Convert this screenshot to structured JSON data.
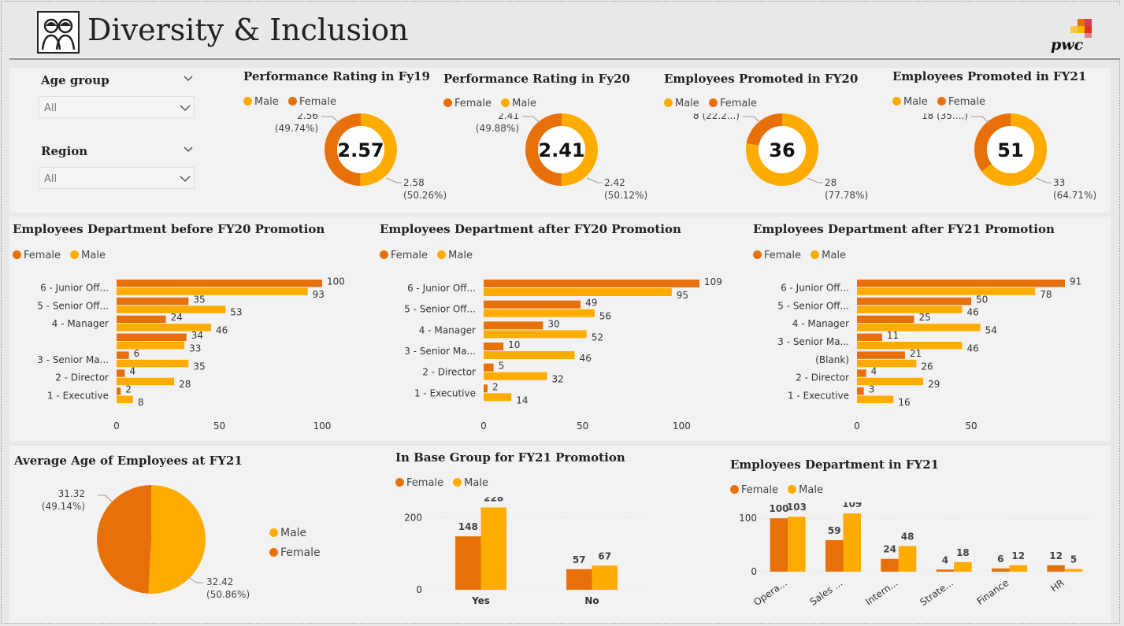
{
  "header": {
    "title": "Diversity & Inclusion",
    "icon": "people-icon",
    "logo_text": "pwc"
  },
  "colors": {
    "male": "#FFAB00",
    "female": "#E8700A"
  },
  "filters": {
    "age_group": {
      "label": "Age group",
      "value": "All"
    },
    "region": {
      "label": "Region",
      "value": "All"
    }
  },
  "donuts": [
    {
      "title": "Performance Rating in Fy19",
      "legend": [
        "Male",
        "Female"
      ],
      "center": "2.57",
      "female_label": "2.56",
      "female_pct": "(49.74%)",
      "male_label": "2.58",
      "male_pct": "(50.26%)"
    },
    {
      "title": "Performance Rating in Fy20",
      "legend": [
        "Female",
        "Male"
      ],
      "center": "2.41",
      "female_label": "2.41",
      "female_pct": "(49.88%)",
      "male_label": "2.42",
      "male_pct": "(50.12%)"
    },
    {
      "title": "Employees Promoted in FY20",
      "legend": [
        "Male",
        "Female"
      ],
      "center": "36",
      "female_label": "8 (22.2...)",
      "female_pct": "",
      "male_label": "28",
      "male_pct": "(77.78%)"
    },
    {
      "title": "Employees Promoted in FY21",
      "legend": [
        "Male",
        "Female"
      ],
      "center": "51",
      "female_label": "18 (35....)",
      "female_pct": "",
      "male_label": "33",
      "male_pct": "(64.71%)"
    }
  ],
  "chart_data": [
    {
      "type": "pie",
      "title": "Performance Rating in Fy19",
      "labels": [
        "Male",
        "Female"
      ],
      "values": [
        2.58,
        2.56
      ],
      "percent": [
        50.26,
        49.74
      ],
      "center_value": "2.57"
    },
    {
      "type": "pie",
      "title": "Performance Rating in Fy20",
      "labels": [
        "Female",
        "Male"
      ],
      "values": [
        2.41,
        2.42
      ],
      "percent": [
        49.88,
        50.12
      ],
      "center_value": "2.41"
    },
    {
      "type": "pie",
      "title": "Employees Promoted in FY20",
      "labels": [
        "Male",
        "Female"
      ],
      "values": [
        28,
        8
      ],
      "percent": [
        77.78,
        22.22
      ],
      "center_value": "36"
    },
    {
      "type": "pie",
      "title": "Employees Promoted in FY21",
      "labels": [
        "Male",
        "Female"
      ],
      "values": [
        33,
        18
      ],
      "percent": [
        64.71,
        35.29
      ],
      "center_value": "51"
    },
    {
      "type": "bar",
      "orientation": "horizontal",
      "title": "Employees Department before FY20 Promotion",
      "categories": [
        "6 - Junior Off...",
        "5 - Senior Off...",
        "4 - Manager",
        "",
        "3 - Senior Ma...",
        "2 - Director",
        "1 - Executive"
      ],
      "series": [
        {
          "name": "Female",
          "values": [
            100,
            35,
            24,
            34,
            6,
            4,
            2
          ]
        },
        {
          "name": "Male",
          "values": [
            93,
            53,
            46,
            33,
            35,
            28,
            8
          ]
        }
      ],
      "xlim": [
        0,
        105
      ],
      "xticks": [
        0,
        50,
        100
      ]
    },
    {
      "type": "bar",
      "orientation": "horizontal",
      "title": "Employees Department after FY20 Promotion",
      "categories": [
        "6 - Junior Off...",
        "5 - Senior Off...",
        "4 - Manager",
        "3 - Senior Ma...",
        "2 - Director",
        "1 - Executive"
      ],
      "series": [
        {
          "name": "Female",
          "values": [
            109,
            49,
            30,
            10,
            5,
            2
          ]
        },
        {
          "name": "Male",
          "values": [
            95,
            56,
            52,
            46,
            32,
            14
          ]
        }
      ],
      "xlim": [
        0,
        109
      ],
      "xticks": [
        0,
        50,
        100
      ]
    },
    {
      "type": "bar",
      "orientation": "horizontal",
      "title": "Employees Department after FY21 Promotion",
      "categories": [
        "6 - Junior Off...",
        "5 - Senior Off...",
        "4 - Manager",
        "3 - Senior Ma...",
        "(Blank)",
        "2 - Director",
        "1 - Executive"
      ],
      "series": [
        {
          "name": "Female",
          "values": [
            91,
            50,
            25,
            11,
            21,
            4,
            3
          ]
        },
        {
          "name": "Male",
          "values": [
            78,
            46,
            54,
            46,
            26,
            29,
            16
          ]
        }
      ],
      "xlim": [
        0,
        91
      ],
      "xticks": [
        0,
        50
      ]
    },
    {
      "type": "pie",
      "title": "Average Age of Employees at FY21",
      "labels": [
        "Male",
        "Female"
      ],
      "values": [
        32.42,
        31.32
      ],
      "percent": [
        50.86,
        49.14
      ]
    },
    {
      "type": "bar",
      "title": "In Base Group for FY21 Promotion",
      "categories": [
        "Yes",
        "No"
      ],
      "series": [
        {
          "name": "Female",
          "values": [
            148,
            57
          ]
        },
        {
          "name": "Male",
          "values": [
            228,
            67
          ]
        }
      ],
      "ylim": [
        0,
        240
      ],
      "yticks": [
        0,
        200
      ]
    },
    {
      "type": "bar",
      "title": "Employees Department in FY21",
      "categories": [
        "Opera...",
        "Sales ...",
        "Intern...",
        "Strate...",
        "Finance",
        "HR"
      ],
      "series": [
        {
          "name": "Female",
          "values": [
            100,
            59,
            24,
            4,
            6,
            12
          ]
        },
        {
          "name": "Male",
          "values": [
            103,
            109,
            48,
            18,
            12,
            5
          ]
        }
      ],
      "ylim": [
        0,
        115
      ],
      "yticks": [
        0,
        100
      ]
    }
  ],
  "pie_age": {
    "title": "Average Age of Employees at FY21",
    "legend": [
      "Male",
      "Female"
    ],
    "female_label": "31.32",
    "female_pct": "(49.14%)",
    "male_label": "32.42",
    "male_pct": "(50.86%)"
  },
  "bars": [
    {
      "title": "Employees Department before FY20 Promotion",
      "legend": [
        "Female",
        "Male"
      ]
    },
    {
      "title": "Employees Department after FY20 Promotion",
      "legend": [
        "Female",
        "Male"
      ]
    },
    {
      "title": "Employees Department after FY21 Promotion",
      "legend": [
        "Female",
        "Male"
      ]
    },
    {
      "title": "In Base Group for FY21 Promotion",
      "legend": [
        "Female",
        "Male"
      ]
    },
    {
      "title": "Employees Department in FY21",
      "legend": [
        "Female",
        "Male"
      ]
    }
  ]
}
